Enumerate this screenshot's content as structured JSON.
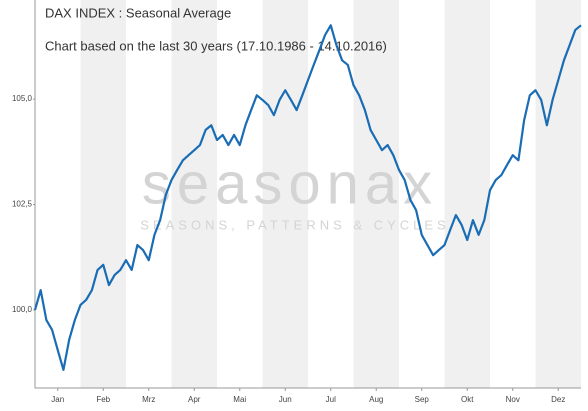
{
  "chart_data": {
    "type": "line",
    "title": "DAX INDEX : Seasonal Average",
    "subtitle": "Chart based on the last 30 years (17.10.1986 - 14.10.2016)",
    "watermark": "seasonax",
    "watermark_tagline": "SEASONS, PATTERNS & CYCLES",
    "x": [
      0,
      0.125,
      0.25,
      0.375,
      0.5,
      0.625,
      0.75,
      0.875,
      1,
      1.125,
      1.25,
      1.375,
      1.5,
      1.625,
      1.75,
      1.875,
      2,
      2.125,
      2.25,
      2.375,
      2.5,
      2.625,
      2.75,
      2.875,
      3,
      3.125,
      3.25,
      3.375,
      3.5,
      3.625,
      3.75,
      3.875,
      4,
      4.125,
      4.25,
      4.375,
      4.5,
      4.625,
      4.75,
      4.875,
      5,
      5.125,
      5.25,
      5.375,
      5.5,
      5.625,
      5.75,
      5.875,
      6,
      6.125,
      6.25,
      6.375,
      6.5,
      6.625,
      6.75,
      6.875,
      7,
      7.125,
      7.25,
      7.375,
      7.5,
      7.625,
      7.75,
      7.875,
      8,
      8.125,
      8.25,
      8.375,
      8.5,
      8.625,
      8.75,
      8.875,
      9,
      9.125,
      9.25,
      9.375,
      9.5,
      9.625,
      9.75,
      9.875,
      10,
      10.125,
      10.25,
      10.375,
      10.5,
      10.625,
      10.75,
      10.875,
      11,
      11.125,
      11.25,
      11.375,
      11.5,
      11.625,
      11.75,
      11.875,
      12
    ],
    "series": [
      {
        "color": "#1a6db5",
        "values": [
          100.0,
          100.47,
          99.76,
          99.53,
          99.05,
          98.58,
          99.29,
          99.76,
          100.12,
          100.24,
          100.47,
          100.95,
          101.07,
          100.59,
          100.83,
          100.95,
          101.18,
          100.95,
          101.54,
          101.42,
          101.18,
          101.78,
          102.13,
          102.73,
          103.08,
          103.32,
          103.55,
          103.67,
          103.79,
          103.91,
          104.27,
          104.38,
          104.03,
          104.15,
          103.91,
          104.15,
          103.91,
          104.38,
          104.74,
          105.09,
          104.98,
          104.86,
          104.62,
          104.98,
          105.21,
          104.98,
          104.74,
          105.09,
          105.45,
          105.81,
          106.16,
          106.52,
          106.75,
          106.28,
          105.92,
          105.81,
          105.33,
          105.09,
          104.74,
          104.27,
          104.03,
          103.79,
          103.91,
          103.67,
          103.32,
          103.08,
          102.61,
          102.37,
          101.78,
          101.54,
          101.3,
          101.42,
          101.54,
          101.9,
          102.25,
          102.02,
          101.66,
          102.13,
          101.78,
          102.13,
          102.84,
          103.08,
          103.2,
          103.44,
          103.67,
          103.55,
          104.5,
          105.09,
          105.21,
          104.98,
          104.38,
          104.98,
          105.45,
          105.92,
          106.28,
          106.64,
          106.75
        ]
      }
    ],
    "xlim": [
      0,
      12
    ],
    "xticks": [
      {
        "value": 0.5,
        "label": "Jan"
      },
      {
        "value": 1.5,
        "label": "Feb"
      },
      {
        "value": 2.5,
        "label": "Mrz"
      },
      {
        "value": 3.5,
        "label": "Apr"
      },
      {
        "value": 4.5,
        "label": "Mai"
      },
      {
        "value": 5.5,
        "label": "Jun"
      },
      {
        "value": 6.5,
        "label": "Jul"
      },
      {
        "value": 7.5,
        "label": "Aug"
      },
      {
        "value": 8.5,
        "label": "Sep"
      },
      {
        "value": 9.5,
        "label": "Okt"
      },
      {
        "value": 10.5,
        "label": "Nov"
      },
      {
        "value": 11.5,
        "label": "Dez"
      }
    ],
    "ylim": [
      98.15,
      107.35
    ],
    "yticks": [
      {
        "value": 100,
        "label": "100,0"
      },
      {
        "value": 102.5,
        "label": "102,5"
      },
      {
        "value": 105,
        "label": "105,0"
      }
    ]
  }
}
